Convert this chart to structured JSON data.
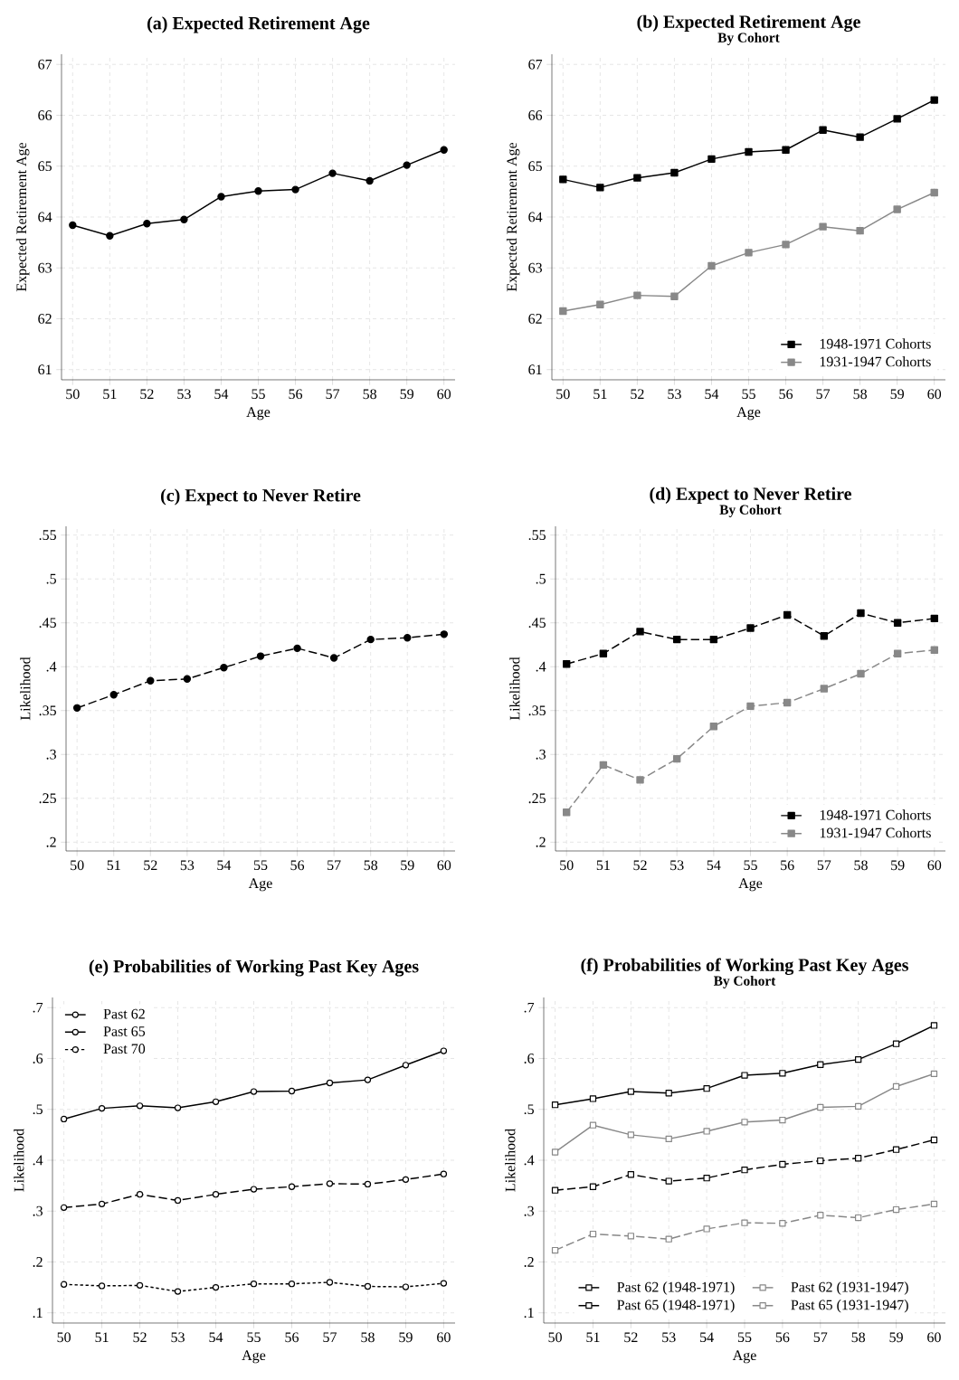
{
  "chart_data": [
    {
      "type": "line",
      "title": "(a) Expected Retirement Age",
      "xlabel": "Age",
      "ylabel": "Expected Retirement Age",
      "x": [
        50,
        51,
        52,
        53,
        54,
        55,
        56,
        57,
        58,
        59,
        60
      ],
      "xlim": [
        49.7,
        60.3
      ],
      "xticks": [
        50,
        51,
        52,
        53,
        54,
        55,
        56,
        57,
        58,
        59,
        60
      ],
      "ylim": [
        60.8,
        67.2
      ],
      "yticks": [
        61,
        62,
        63,
        64,
        65,
        66,
        67
      ],
      "grid": true,
      "marker": "circle",
      "series": [
        {
          "color": "#000000",
          "line_style": "solid",
          "values": [
            63.84,
            63.63,
            63.87,
            63.95,
            64.4,
            64.51,
            64.54,
            64.86,
            64.71,
            65.02,
            65.32
          ]
        }
      ]
    },
    {
      "type": "line",
      "title": "(b) Expected Retirement Age",
      "subtitle": "By Cohort",
      "xlabel": "Age",
      "ylabel": "Expected Retirement Age",
      "x": [
        50,
        51,
        52,
        53,
        54,
        55,
        56,
        57,
        58,
        59,
        60
      ],
      "xlim": [
        49.7,
        60.3
      ],
      "xticks": [
        50,
        51,
        52,
        53,
        54,
        55,
        56,
        57,
        58,
        59,
        60
      ],
      "ylim": [
        60.8,
        67.2
      ],
      "yticks": [
        61,
        62,
        63,
        64,
        65,
        66,
        67
      ],
      "grid": true,
      "marker": "square",
      "legend": "bottom right",
      "series": [
        {
          "name": "1948-1971 Cohorts",
          "color": "#000000",
          "line_style": "solid",
          "values": [
            64.74,
            64.58,
            64.77,
            64.87,
            65.14,
            65.28,
            65.32,
            65.71,
            65.57,
            65.93,
            66.3
          ]
        },
        {
          "name": "1931-1947 Cohorts",
          "color": "#888888",
          "line_style": "solid",
          "values": [
            62.15,
            62.28,
            62.46,
            62.44,
            63.04,
            63.3,
            63.46,
            63.81,
            63.73,
            64.15,
            64.48
          ]
        }
      ]
    },
    {
      "type": "line",
      "title": "(c) Expect to Never Retire",
      "xlabel": "Age",
      "ylabel": "Likelihood",
      "x": [
        50,
        51,
        52,
        53,
        54,
        55,
        56,
        57,
        58,
        59,
        60
      ],
      "xlim": [
        49.7,
        60.3
      ],
      "xticks": [
        50,
        51,
        52,
        53,
        54,
        55,
        56,
        57,
        58,
        59,
        60
      ],
      "ylim": [
        0.19,
        0.56
      ],
      "yticks": [
        {
          "value": 0.2,
          "label": ".2"
        },
        {
          "value": 0.25,
          "label": ".25"
        },
        {
          "value": 0.3,
          "label": ".3"
        },
        {
          "value": 0.35,
          "label": ".35"
        },
        {
          "value": 0.4,
          "label": ".4"
        },
        {
          "value": 0.45,
          "label": ".45"
        },
        {
          "value": 0.5,
          "label": ".5"
        },
        {
          "value": 0.55,
          "label": ".55"
        }
      ],
      "grid": true,
      "marker": "circle",
      "series": [
        {
          "color": "#000000",
          "line_style": "dashed",
          "values": [
            0.353,
            0.368,
            0.384,
            0.386,
            0.399,
            0.412,
            0.421,
            0.41,
            0.431,
            0.433,
            0.437
          ]
        }
      ]
    },
    {
      "type": "line",
      "title": "(d) Expect to Never Retire",
      "subtitle": "By Cohort",
      "xlabel": "Age",
      "ylabel": "Likelihood",
      "x": [
        50,
        51,
        52,
        53,
        54,
        55,
        56,
        57,
        58,
        59,
        60
      ],
      "xlim": [
        49.7,
        60.3
      ],
      "xticks": [
        50,
        51,
        52,
        53,
        54,
        55,
        56,
        57,
        58,
        59,
        60
      ],
      "ylim": [
        0.19,
        0.56
      ],
      "yticks": [
        {
          "value": 0.2,
          "label": ".2"
        },
        {
          "value": 0.25,
          "label": ".25"
        },
        {
          "value": 0.3,
          "label": ".3"
        },
        {
          "value": 0.35,
          "label": ".35"
        },
        {
          "value": 0.4,
          "label": ".4"
        },
        {
          "value": 0.45,
          "label": ".45"
        },
        {
          "value": 0.5,
          "label": ".5"
        },
        {
          "value": 0.55,
          "label": ".55"
        }
      ],
      "grid": true,
      "marker": "square",
      "legend": "bottom right",
      "series": [
        {
          "name": "1948-1971 Cohorts",
          "color": "#000000",
          "line_style": "dashed",
          "values": [
            0.403,
            0.415,
            0.44,
            0.431,
            0.431,
            0.444,
            0.459,
            0.435,
            0.461,
            0.45,
            0.455
          ]
        },
        {
          "name": "1931-1947 Cohorts",
          "color": "#888888",
          "line_style": "dashed",
          "values": [
            0.234,
            0.288,
            0.271,
            0.295,
            0.332,
            0.355,
            0.359,
            0.375,
            0.392,
            0.415,
            0.419
          ]
        }
      ]
    },
    {
      "type": "line",
      "title": "(e) Probabilities of Working Past Key Ages",
      "xlabel": "Age",
      "ylabel": "Likelihood",
      "x": [
        50,
        51,
        52,
        53,
        54,
        55,
        56,
        57,
        58,
        59,
        60
      ],
      "xlim": [
        49.7,
        60.3
      ],
      "xticks": [
        50,
        51,
        52,
        53,
        54,
        55,
        56,
        57,
        58,
        59,
        60
      ],
      "ylim": [
        0.08,
        0.72
      ],
      "yticks": [
        {
          "value": 0.1,
          "label": ".1"
        },
        {
          "value": 0.2,
          "label": ".2"
        },
        {
          "value": 0.3,
          "label": ".3"
        },
        {
          "value": 0.4,
          "label": ".4"
        },
        {
          "value": 0.5,
          "label": ".5"
        },
        {
          "value": 0.6,
          "label": ".6"
        },
        {
          "value": 0.7,
          "label": ".7"
        }
      ],
      "grid": true,
      "marker": "circle",
      "legend": "top left",
      "series": [
        {
          "name": "Past 62",
          "color": "#000000",
          "line_style": "solid",
          "values": [
            0.481,
            0.502,
            0.507,
            0.503,
            0.515,
            0.535,
            0.536,
            0.552,
            0.558,
            0.587,
            0.615
          ]
        },
        {
          "name": "Past 65",
          "color": "#000000",
          "line_style": "dashed",
          "values": [
            0.307,
            0.314,
            0.333,
            0.321,
            0.333,
            0.343,
            0.348,
            0.354,
            0.353,
            0.362,
            0.373
          ]
        },
        {
          "name": "Past 70",
          "color": "#000000",
          "line_style": "dotted",
          "values": [
            0.156,
            0.153,
            0.154,
            0.142,
            0.15,
            0.157,
            0.157,
            0.16,
            0.152,
            0.151,
            0.158
          ]
        }
      ]
    },
    {
      "type": "line",
      "title": "(f) Probabilities of Working Past Key Ages",
      "subtitle": "By Cohort",
      "xlabel": "Age",
      "ylabel": "Likelihood",
      "x": [
        50,
        51,
        52,
        53,
        54,
        55,
        56,
        57,
        58,
        59,
        60
      ],
      "xlim": [
        49.7,
        60.3
      ],
      "xticks": [
        50,
        51,
        52,
        53,
        54,
        55,
        56,
        57,
        58,
        59,
        60
      ],
      "ylim": [
        0.08,
        0.72
      ],
      "yticks": [
        {
          "value": 0.1,
          "label": ".1"
        },
        {
          "value": 0.2,
          "label": ".2"
        },
        {
          "value": 0.3,
          "label": ".3"
        },
        {
          "value": 0.4,
          "label": ".4"
        },
        {
          "value": 0.5,
          "label": ".5"
        },
        {
          "value": 0.6,
          "label": ".6"
        },
        {
          "value": 0.7,
          "label": ".7"
        }
      ],
      "grid": true,
      "marker": "square",
      "legend": "bottom",
      "series": [
        {
          "name": "Past 62 (1948-1971)",
          "color": "#000000",
          "line_style": "solid",
          "values": [
            0.509,
            0.521,
            0.535,
            0.532,
            0.541,
            0.567,
            0.571,
            0.588,
            0.598,
            0.629,
            0.665
          ]
        },
        {
          "name": "Past 62 (1931-1947)",
          "color": "#888888",
          "line_style": "solid",
          "values": [
            0.416,
            0.469,
            0.45,
            0.442,
            0.457,
            0.475,
            0.479,
            0.504,
            0.506,
            0.545,
            0.57
          ]
        },
        {
          "name": "Past 65 (1948-1971)",
          "color": "#000000",
          "line_style": "dashed",
          "values": [
            0.341,
            0.348,
            0.372,
            0.359,
            0.365,
            0.381,
            0.392,
            0.399,
            0.404,
            0.421,
            0.44
          ]
        },
        {
          "name": "Past 65 (1931-1947)",
          "color": "#888888",
          "line_style": "dashed",
          "values": [
            0.223,
            0.255,
            0.251,
            0.245,
            0.265,
            0.277,
            0.276,
            0.292,
            0.287,
            0.303,
            0.314
          ]
        }
      ]
    }
  ]
}
